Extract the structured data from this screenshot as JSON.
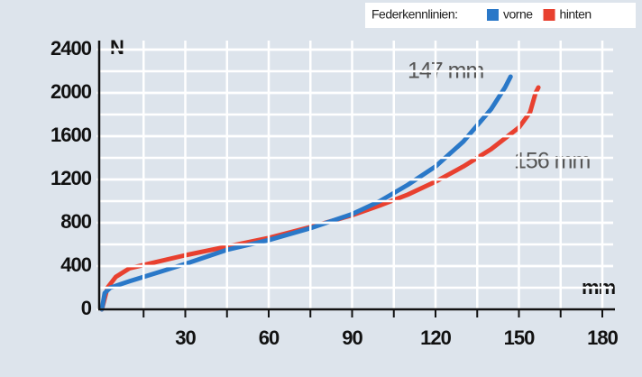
{
  "chart_data": {
    "type": "line",
    "legend_title": "Federkennlinien:",
    "x_label": "mm",
    "y_label": "N",
    "annotations": [
      "147 mm",
      "156 mm"
    ],
    "xlim": [
      0,
      180
    ],
    "xticks": [
      30,
      60,
      90,
      120,
      150,
      180
    ],
    "ylim": [
      0,
      2400
    ],
    "yticks": [
      0,
      400,
      800,
      1200,
      1600,
      2000,
      2400
    ],
    "grid": true,
    "legend": "top-right",
    "series": [
      {
        "name": "vorne",
        "color": "#2a78c8",
        "x": [
          0,
          1,
          3,
          10,
          20,
          30,
          45,
          60,
          75,
          90,
          100,
          110,
          120,
          130,
          140,
          145,
          147
        ],
        "values": [
          0,
          150,
          200,
          260,
          340,
          420,
          550,
          640,
          750,
          880,
          1000,
          1150,
          1320,
          1550,
          1850,
          2050,
          2150
        ]
      },
      {
        "name": "hinten",
        "color": "#e8402f",
        "x": [
          0,
          2,
          5,
          10,
          20,
          30,
          45,
          60,
          75,
          90,
          100,
          110,
          120,
          130,
          140,
          150,
          154,
          156,
          157
        ],
        "values": [
          0,
          200,
          300,
          380,
          440,
          500,
          580,
          660,
          760,
          870,
          960,
          1060,
          1180,
          1320,
          1480,
          1680,
          1820,
          2000,
          2050
        ]
      }
    ]
  }
}
